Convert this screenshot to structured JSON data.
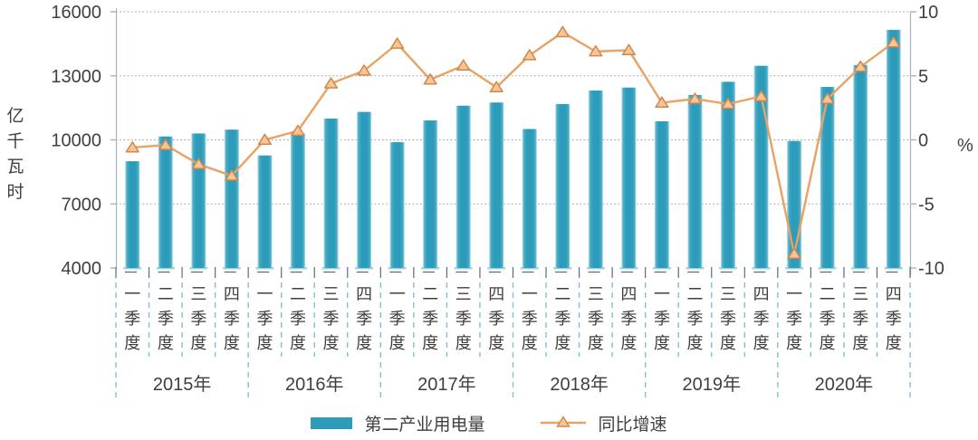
{
  "chart_data": {
    "type": "combo-bar-line",
    "title": "",
    "left_axis": {
      "unit": "亿千瓦时",
      "min": 4000,
      "max": 16000,
      "ticks": [
        16000,
        13000,
        10000,
        7000,
        4000
      ]
    },
    "right_axis": {
      "unit": "%",
      "min": -10,
      "max": 10,
      "ticks": [
        10,
        5,
        0,
        -5,
        -10
      ]
    },
    "quarter_labels": [
      "一季度",
      "二季度",
      "三季度",
      "四季度"
    ],
    "years": [
      "2015年",
      "2016年",
      "2017年",
      "2018年",
      "2019年",
      "2020年"
    ],
    "series": [
      {
        "name": "第二产业用电量",
        "type": "bar",
        "axis": "left",
        "values": [
          9000,
          10160,
          10300,
          10480,
          9270,
          10300,
          11000,
          11310,
          9890,
          10910,
          11600,
          11750,
          10510,
          11680,
          12310,
          12450,
          10870,
          12100,
          12720,
          13470,
          9950,
          12480,
          13510,
          15150
        ]
      },
      {
        "name": "同比增速",
        "type": "line",
        "axis": "right",
        "values": [
          -0.6,
          -0.4,
          -1.9,
          -2.8,
          0.0,
          0.7,
          4.4,
          5.4,
          7.5,
          4.7,
          5.8,
          4.1,
          6.6,
          8.4,
          6.9,
          7.0,
          2.9,
          3.2,
          2.8,
          3.4,
          -8.9,
          3.2,
          5.7,
          7.6
        ]
      }
    ],
    "legend": {
      "bar_label": "第二产业用电量",
      "line_label": "同比增速"
    },
    "grid": "horizontal-dotted",
    "legend_position": "bottom-center",
    "colors": {
      "bar": "#2d9cba",
      "bar_edge": "#a9dae4",
      "line": "#e8a263",
      "marker_fill": "#f7c694",
      "marker_stroke": "#d0874d",
      "grid": "#9e9e9e",
      "axis": "#a8b4bc",
      "separator": "#79c4d3",
      "baseline_tick": "#5b6b72",
      "text": "#3f3f3f"
    }
  }
}
